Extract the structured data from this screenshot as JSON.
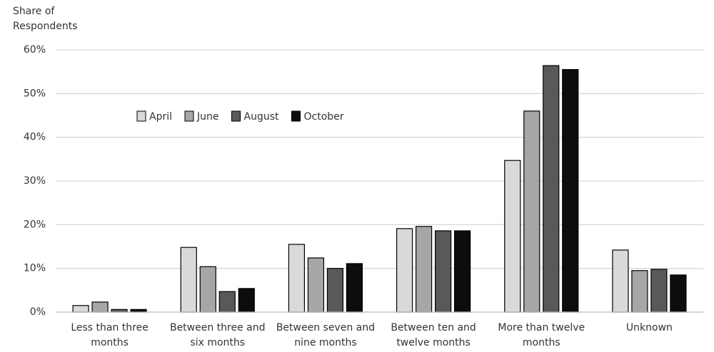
{
  "chart_data": {
    "type": "bar",
    "y_label": "Share of Respondents",
    "categories": [
      "Less than three months",
      "Between three and six months",
      "Between seven and nine months",
      "Between ten and twelve months",
      "More than twelve months",
      "Unknown"
    ],
    "series": [
      {
        "name": "April",
        "color": "#d9d9d9",
        "values": [
          1.5,
          14.8,
          15.5,
          19.1,
          34.7,
          14.2
        ]
      },
      {
        "name": "June",
        "color": "#a6a6a6",
        "values": [
          2.3,
          10.4,
          12.4,
          19.6,
          46.0,
          9.5
        ]
      },
      {
        "name": "August",
        "color": "#595959",
        "values": [
          0.6,
          4.7,
          10.0,
          18.6,
          56.4,
          9.8
        ]
      },
      {
        "name": "October",
        "color": "#0d0d0d",
        "values": [
          0.6,
          5.4,
          11.1,
          18.6,
          55.5,
          8.5
        ]
      }
    ],
    "ylim": [
      0,
      60
    ],
    "yticks": [
      {
        "value": 0,
        "label": "0%"
      },
      {
        "value": 10,
        "label": "10%"
      },
      {
        "value": 20,
        "label": "20%"
      },
      {
        "value": 30,
        "label": "30%"
      },
      {
        "value": 40,
        "label": "40%"
      },
      {
        "value": 50,
        "label": "50%"
      },
      {
        "value": 60,
        "label": "60%"
      }
    ],
    "grid": true,
    "legend_position": "upper left"
  }
}
